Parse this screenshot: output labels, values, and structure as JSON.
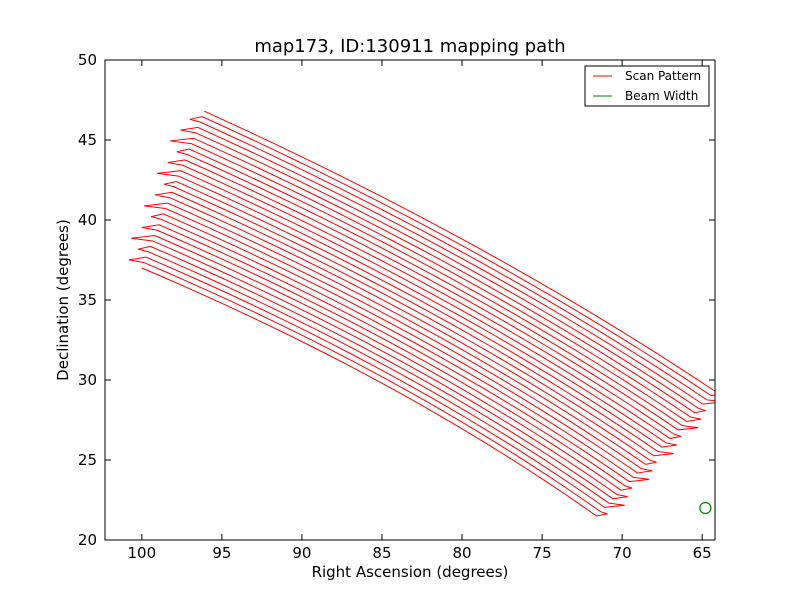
{
  "chart_data": {
    "type": "line",
    "title": "map173, ID:130911 mapping path",
    "xlabel": "Right Ascension (degrees)",
    "ylabel": "Declination (degrees)",
    "xlim": [
      102.3,
      64.2
    ],
    "ylim": [
      20,
      50
    ],
    "x_inverted": true,
    "xticks": [
      100,
      95,
      90,
      85,
      80,
      75,
      70,
      65
    ],
    "xtick_labels": [
      "100",
      "95",
      "90",
      "85",
      "80",
      "75",
      "70",
      "65"
    ],
    "yticks": [
      20,
      25,
      30,
      35,
      40,
      45,
      50
    ],
    "ytick_labels": [
      "20",
      "25",
      "30",
      "35",
      "40",
      "45",
      "50"
    ],
    "grid": false,
    "legend": {
      "position": "top-right",
      "entries": [
        "Scan Pattern",
        "Beam Width"
      ]
    },
    "series": [
      {
        "name": "Scan Pattern",
        "color": "#ff0000",
        "kind": "raster-scan",
        "n_passes": 30,
        "start_left": {
          "ra": 100.0,
          "dec": 37.0
        },
        "start_right": {
          "ra": 71.6,
          "dec": 21.5
        },
        "mid_left": {
          "ra": 88.5,
          "dec": 33.0
        },
        "mid_right": {
          "ra": 79.0,
          "dec": 27.2
        },
        "end_left": {
          "ra": 96.1,
          "dec": 46.8
        },
        "end_right": {
          "ra": 64.2,
          "dec": 29.3
        },
        "left_turn_zigzag_ra": 1.0,
        "right_turn_zigzag_ra": 0.8
      },
      {
        "name": "Beam Width",
        "color": "#008000",
        "kind": "circle-marker",
        "ra": 64.8,
        "dec": 22.0
      }
    ]
  }
}
